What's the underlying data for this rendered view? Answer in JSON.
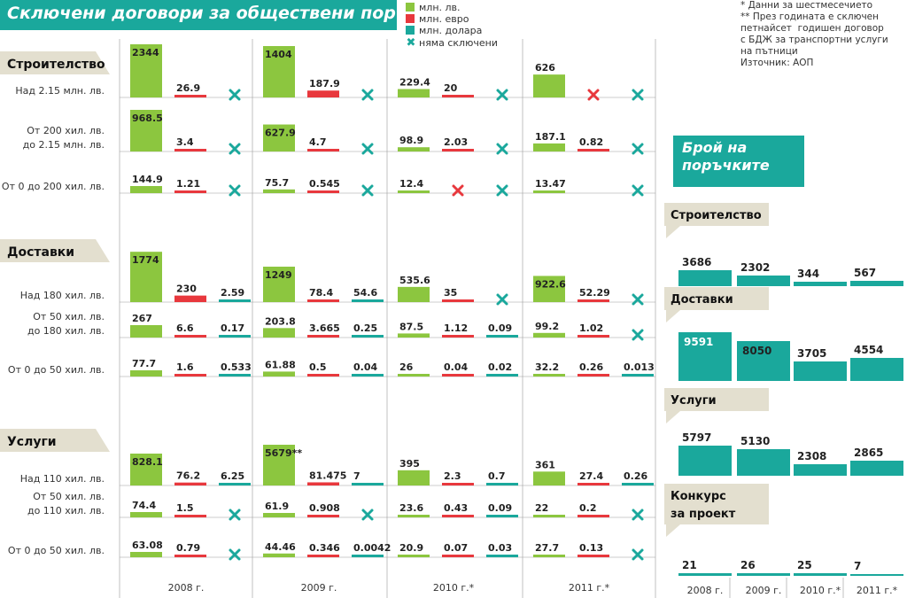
{
  "title": "Сключени договори за обществени поръчки",
  "legend": [
    {
      "label": "млн. лв.",
      "color": "#8cc63f",
      "type": "swatch"
    },
    {
      "label": "млн. евро",
      "color": "#e8383d",
      "type": "swatch"
    },
    {
      "label": "млн. долара",
      "color": "#1aa89c",
      "type": "swatch"
    },
    {
      "label": "няма сключени",
      "color": "#1aa89c",
      "type": "x"
    }
  ],
  "notes": [
    "* Данни за шестмесечието",
    "** През годината е сключен",
    "петнайсет  годишен договор",
    "с БДЖ за транспортни услуги",
    "на пътници",
    "Източник: АОП"
  ],
  "colors": {
    "lev": "#8cc63f",
    "euro": "#e8383d",
    "usd": "#1aa89c",
    "label_bg": "#e3dfcf",
    "grid": "#999999"
  },
  "right_title": "Брой на поръчките",
  "chart_data": [
    {
      "type": "bar",
      "title": "Сключени договори за обществени поръчки",
      "years": [
        "2008 г.",
        "2009 г.",
        "2010 г.*",
        "2011 г.*"
      ],
      "series": [
        {
          "name": "млн. лв."
        },
        {
          "name": "млн. евро"
        },
        {
          "name": "млн. долара"
        }
      ],
      "groups": [
        {
          "name": "Строителство",
          "rows": [
            {
              "label": "Над 2.15 млн. лв.",
              "values": [
                [
                  "2344",
                  "26.9",
                  null
                ],
                [
                  "1404",
                  "187.9",
                  null
                ],
                [
                  "229.4",
                  "20",
                  null
                ],
                [
                  "626",
                  null,
                  null
                ]
              ],
              "scale": 1404,
              "max_h": 58
            },
            {
              "label": "От 200 хил. лв.\nдо 2.15 млн. лв.",
              "values": [
                [
                  "968.5",
                  "3.4",
                  null
                ],
                [
                  "627.9",
                  "4.7",
                  null
                ],
                [
                  "98.9",
                  "2.03",
                  null
                ],
                [
                  "187.1",
                  "0.82",
                  null
                ]
              ],
              "scale": 968.5,
              "max_h": 47
            },
            {
              "label": "От 0 до 200 хил. лв.",
              "values": [
                [
                  "144.9",
                  "1.21",
                  null
                ],
                [
                  "75.7",
                  "0.545",
                  null
                ],
                [
                  "12.4",
                  null,
                  null
                ],
                [
                  "13.47",
                  "",
                  null
                ]
              ],
              "scale": 144.9,
              "max_h": 8
            }
          ]
        },
        {
          "name": "Доставки",
          "rows": [
            {
              "label": "Над 180 хил. лв.",
              "values": [
                [
                  "1774",
                  "230",
                  "2.59"
                ],
                [
                  "1249",
                  "78.4",
                  "54.6"
                ],
                [
                  "535.6",
                  "35",
                  null
                ],
                [
                  "922.6",
                  "52.29",
                  null
                ]
              ],
              "scale": 1249,
              "max_h": 40
            },
            {
              "label": "От 50 хил. лв.\nдо 180 хил. лв.",
              "values": [
                [
                  "267",
                  "6.6",
                  "0.17"
                ],
                [
                  "203.8",
                  "3.665",
                  "0.25"
                ],
                [
                  "87.5",
                  "1.12",
                  "0.09"
                ],
                [
                  "99.2",
                  "1.02",
                  null
                ]
              ],
              "scale": 267,
              "max_h": 14
            },
            {
              "label": "От 0 до 50 хил. лв.",
              "values": [
                [
                  "77.7",
                  "1.6",
                  "0.533"
                ],
                [
                  "61.88",
                  "0.5",
                  "0.04"
                ],
                [
                  "26",
                  "0.04",
                  "0.02"
                ],
                [
                  "32.2",
                  "0.26",
                  "0.013"
                ]
              ],
              "scale": 77.7,
              "max_h": 7
            }
          ]
        },
        {
          "name": "Услуги",
          "rows": [
            {
              "label": "Над 110 хил. лв.",
              "values": [
                [
                  "828.1",
                  "76.2",
                  "6.25"
                ],
                [
                  "5679**",
                  "81.475",
                  "7"
                ],
                [
                  "395",
                  "2.3",
                  "0.7"
                ],
                [
                  "361",
                  "27.4",
                  "0.26"
                ]
              ],
              "scale": 828.1,
              "max_h": 36
            },
            {
              "label": "От 50 хил. лв.\nдо 110 хил. лв.",
              "values": [
                [
                  "74.4",
                  "1.5",
                  null
                ],
                [
                  "61.9",
                  "0.908",
                  null
                ],
                [
                  "23.6",
                  "0.43",
                  "0.09"
                ],
                [
                  "22",
                  "0.2",
                  null
                ]
              ],
              "scale": 74.4,
              "max_h": 6
            },
            {
              "label": "От 0 до 50 хил. лв.",
              "values": [
                [
                  "63.08",
                  "0.79",
                  null
                ],
                [
                  "44.46",
                  "0.346",
                  "0.0042"
                ],
                [
                  "20.9",
                  "0.07",
                  "0.03"
                ],
                [
                  "27.7",
                  "0.13",
                  null
                ]
              ],
              "scale": 63.08,
              "max_h": 6
            }
          ]
        }
      ],
      "crossed": [
        [
          0,
          0,
          3,
          1
        ],
        [
          0,
          2,
          2,
          1
        ]
      ]
    },
    {
      "type": "bar",
      "title": "Брой на поръчките",
      "categories": [
        "2008 г.",
        "2009 г.",
        "2010 г.*",
        "2011 г.*"
      ],
      "series": [
        {
          "name": "Строителство",
          "values": [
            3686,
            2302,
            344,
            567
          ]
        },
        {
          "name": "Доставки",
          "values": [
            9591,
            8050,
            3705,
            4554
          ]
        },
        {
          "name": "Услуги",
          "values": [
            5797,
            5130,
            2308,
            2865
          ]
        },
        {
          "name": "Конкурс\nза проект",
          "values": [
            21,
            26,
            25,
            7
          ]
        }
      ]
    }
  ]
}
